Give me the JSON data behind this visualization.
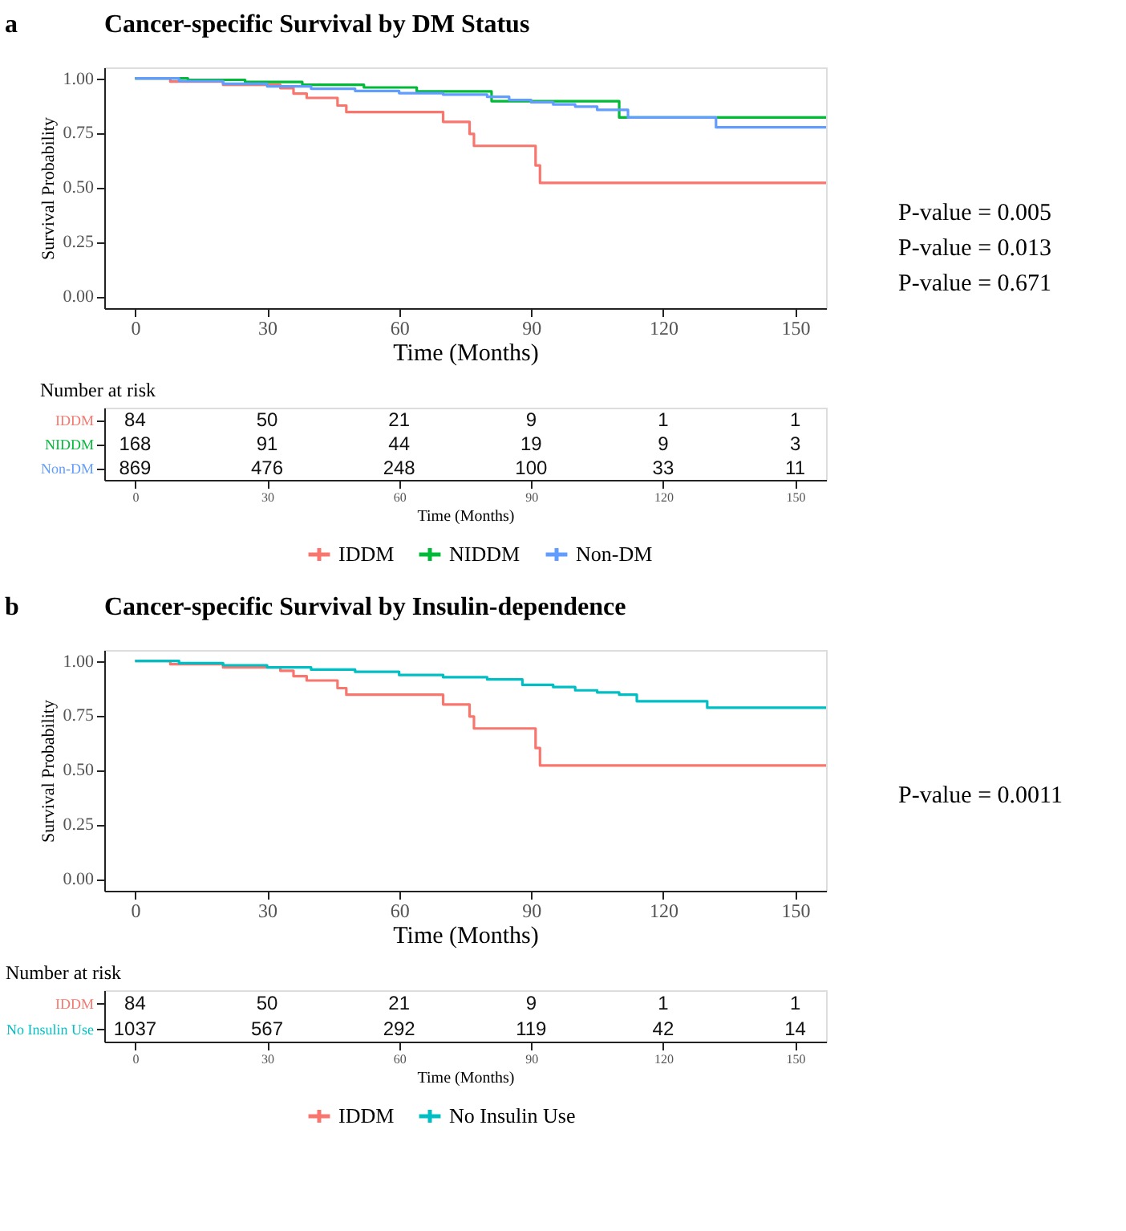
{
  "chart_data": [
    {
      "type": "step",
      "title": "Cancer-specific Survival by DM Status",
      "xlabel": "Time (Months)",
      "ylabel": "Survival Probability",
      "xlim": [
        -7,
        157
      ],
      "xticks": [
        0,
        30,
        60,
        90,
        120,
        150
      ],
      "ylim": [
        -0.055,
        1.05
      ],
      "yticks": [
        {
          "value": 0,
          "label": "0.00"
        },
        {
          "value": 0.25,
          "label": "0.25"
        },
        {
          "value": 0.5,
          "label": "0.50"
        },
        {
          "value": 0.75,
          "label": "0.75"
        },
        {
          "value": 1,
          "label": "1.00"
        }
      ],
      "grid": false,
      "legend": "bottom",
      "annotations": [
        "a",
        "P-value = 0.005",
        "P-value = 0.013",
        "P-value = 0.671"
      ],
      "series": [
        {
          "name": "IDDM",
          "color": "#f8766d",
          "x": [
            0,
            8,
            20,
            33,
            36,
            39,
            46,
            48,
            70,
            76,
            77,
            91,
            92,
            157
          ],
          "values": [
            1,
            0.985,
            0.97,
            0.955,
            0.93,
            0.91,
            0.875,
            0.845,
            0.8,
            0.745,
            0.69,
            0.6,
            0.52,
            0.52
          ]
        },
        {
          "name": "NIDDM",
          "color": "#00ba38",
          "x": [
            0,
            12,
            25,
            38,
            52,
            64,
            81,
            110,
            157
          ],
          "values": [
            1,
            0.993,
            0.983,
            0.97,
            0.958,
            0.94,
            0.895,
            0.82,
            0.82
          ]
        },
        {
          "name": "Non-DM",
          "color": "#619cff",
          "x": [
            0,
            10,
            20,
            30,
            40,
            50,
            60,
            70,
            80,
            85,
            90,
            95,
            100,
            105,
            112,
            132,
            157
          ],
          "values": [
            1,
            0.987,
            0.975,
            0.963,
            0.952,
            0.942,
            0.932,
            0.925,
            0.915,
            0.9,
            0.89,
            0.88,
            0.87,
            0.855,
            0.82,
            0.775,
            0.775
          ]
        }
      ]
    },
    {
      "type": "heatmap",
      "title": "Number at risk",
      "xlabel": "Time (Months)",
      "categories": [
        "0",
        "30",
        "60",
        "90",
        "120",
        "150"
      ],
      "y_categories": [
        "IDDM",
        "NIDDM",
        "Non-DM"
      ],
      "cells": [
        [
          84,
          50,
          21,
          9,
          1,
          1
        ],
        [
          168,
          91,
          44,
          19,
          9,
          3
        ],
        [
          869,
          476,
          248,
          100,
          33,
          11
        ]
      ],
      "data_labels": true
    },
    {
      "type": "step",
      "title": "Cancer-specific Survival by Insulin-dependence",
      "xlabel": "Time (Months)",
      "ylabel": "Survival Probability",
      "xlim": [
        -7,
        157
      ],
      "xticks": [
        0,
        30,
        60,
        90,
        120,
        150
      ],
      "ylim": [
        -0.055,
        1.05
      ],
      "yticks": [
        {
          "value": 0,
          "label": "0.00"
        },
        {
          "value": 0.25,
          "label": "0.25"
        },
        {
          "value": 0.5,
          "label": "0.50"
        },
        {
          "value": 0.75,
          "label": "0.75"
        },
        {
          "value": 1,
          "label": "1.00"
        }
      ],
      "grid": false,
      "legend": "bottom",
      "annotations": [
        "b",
        "P-value = 0.0011"
      ],
      "series": [
        {
          "name": "IDDM",
          "color": "#f8766d",
          "x": [
            0,
            8,
            20,
            33,
            36,
            39,
            46,
            48,
            70,
            76,
            77,
            91,
            92,
            157
          ],
          "values": [
            1,
            0.985,
            0.97,
            0.955,
            0.93,
            0.91,
            0.875,
            0.845,
            0.8,
            0.745,
            0.69,
            0.6,
            0.52,
            0.52
          ]
        },
        {
          "name": "No Insulin Use",
          "color": "#00bfc4",
          "x": [
            0,
            10,
            20,
            30,
            40,
            50,
            60,
            70,
            80,
            88,
            95,
            100,
            105,
            110,
            114,
            130,
            157
          ],
          "values": [
            1,
            0.99,
            0.98,
            0.97,
            0.96,
            0.95,
            0.935,
            0.925,
            0.915,
            0.89,
            0.88,
            0.865,
            0.855,
            0.845,
            0.815,
            0.785,
            0.785
          ]
        }
      ]
    },
    {
      "type": "heatmap",
      "title": "Number at risk",
      "xlabel": "Time (Months)",
      "categories": [
        "0",
        "30",
        "60",
        "90",
        "120",
        "150"
      ],
      "y_categories": [
        "IDDM",
        "No Insulin Use"
      ],
      "cells": [
        [
          84,
          50,
          21,
          9,
          1,
          1
        ],
        [
          1037,
          567,
          292,
          119,
          42,
          14
        ]
      ],
      "data_labels": true
    }
  ]
}
